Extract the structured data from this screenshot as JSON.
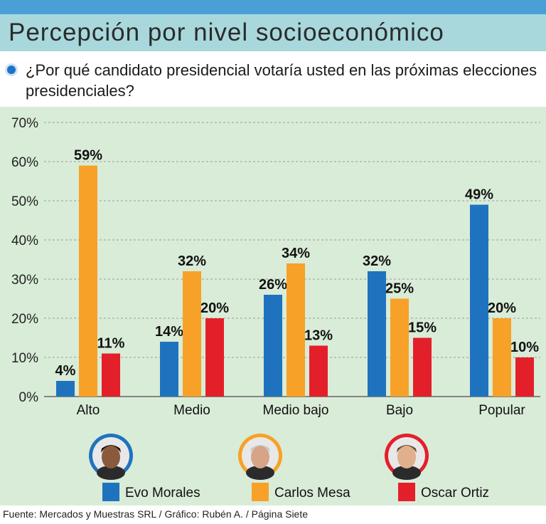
{
  "header": {
    "title": "Percepción por nivel socioeconómico",
    "question": "¿Por qué candidato presidencial votaría usted en las próximas  elecciones presidenciales?"
  },
  "footer": {
    "source": "Fuente: Mercados y Muestras SRL / Gráfico: Rubén A. / Página Siete"
  },
  "colors": {
    "evo": "#1f73be",
    "mesa": "#f7a128",
    "ortiz": "#e3202a",
    "background": "#d9ecd8",
    "topbar": "#4a9fd6",
    "titlebar": "#a8d8dc"
  },
  "chart_data": {
    "type": "bar",
    "categories": [
      "Alto",
      "Medio",
      "Medio bajo",
      "Bajo",
      "Popular"
    ],
    "series": [
      {
        "name": "Evo Morales",
        "values": [
          4,
          14,
          26,
          32,
          49
        ],
        "labels": [
          "4%",
          "14%",
          "26%",
          "32%",
          "49%"
        ]
      },
      {
        "name": "Carlos Mesa",
        "values": [
          59,
          32,
          34,
          25,
          20
        ],
        "labels": [
          "59%",
          "32%",
          "34%",
          "25%",
          "20%"
        ]
      },
      {
        "name": "Oscar Ortiz",
        "values": [
          11,
          20,
          13,
          15,
          10
        ],
        "labels": [
          "11%",
          "20%",
          "13%",
          "15%",
          "10%"
        ]
      }
    ],
    "yticks": [
      "0%",
      "10%",
      "20%",
      "30%",
      "40%",
      "50%",
      "60%",
      "70%"
    ],
    "ylim": [
      0,
      70
    ],
    "grid": true,
    "legend": "bottom",
    "legend_items": [
      {
        "name": "Evo Morales",
        "icon": "evo-morales-portrait"
      },
      {
        "name": "Carlos Mesa",
        "icon": "carlos-mesa-portrait"
      },
      {
        "name": "Oscar Ortiz",
        "icon": "oscar-ortiz-portrait"
      }
    ]
  }
}
